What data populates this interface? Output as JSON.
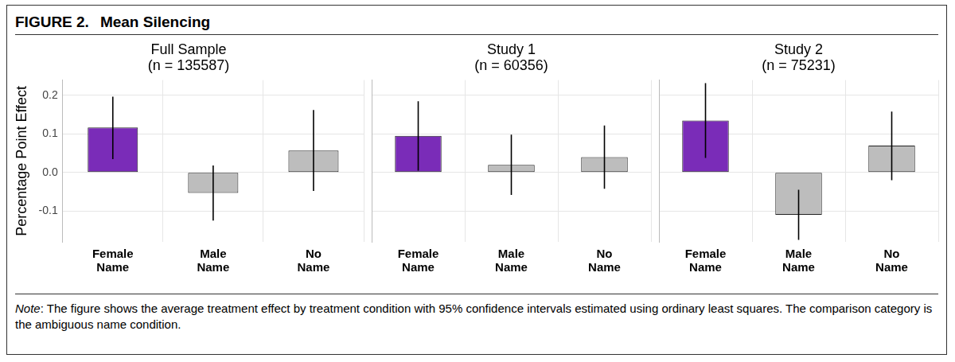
{
  "figure": {
    "label": "FIGURE 2.",
    "title": "Mean Silencing",
    "note_label": "Note",
    "note": ": The figure shows the average treatment effect by treatment condition with 95% confidence intervals estimated using ordinary least squares. The comparison category is the ambiguous name condition."
  },
  "chart_data": [
    {
      "type": "bar",
      "title": [
        "Full Sample",
        "(n = 135587)"
      ],
      "y_label": "Percentage Point Effect",
      "categories": [
        "Female Name",
        "Male Name",
        "No Name"
      ],
      "values": [
        0.117,
        -0.053,
        0.057
      ],
      "ci_low": [
        0.035,
        -0.125,
        -0.048
      ],
      "ci_high": [
        0.197,
        0.018,
        0.162
      ],
      "colors": [
        "#7a2cb8",
        "#bdbdbd",
        "#bdbdbd"
      ],
      "ylim": [
        -0.18,
        0.24
      ],
      "yticks": [
        -0.1,
        {
          "value": 0,
          "label": "0.0"
        },
        0.1,
        0.2
      ],
      "grid": true
    },
    {
      "type": "bar",
      "title": [
        "Study 1",
        "(n = 60356)"
      ],
      "categories": [
        "Female Name",
        "Male Name",
        "No Name"
      ],
      "values": [
        0.095,
        0.02,
        0.04
      ],
      "ci_low": [
        0.005,
        -0.058,
        -0.042
      ],
      "ci_high": [
        0.185,
        0.098,
        0.122
      ],
      "colors": [
        "#7a2cb8",
        "#bdbdbd",
        "#bdbdbd"
      ],
      "ylim": [
        -0.18,
        0.24
      ],
      "yticks": [
        -0.1,
        {
          "value": 0,
          "label": "0.0"
        },
        0.1,
        0.2
      ],
      "grid": true,
      "tick_labels": "x"
    },
    {
      "type": "bar",
      "title": [
        "Study 2",
        "(n = 75231)"
      ],
      "categories": [
        "Female Name",
        "Male Name",
        "No Name"
      ],
      "values": [
        0.135,
        -0.11,
        0.07
      ],
      "ci_low": [
        0.038,
        -0.175,
        -0.02
      ],
      "ci_high": [
        0.232,
        -0.045,
        0.158
      ],
      "colors": [
        "#7a2cb8",
        "#bdbdbd",
        "#bdbdbd"
      ],
      "ylim": [
        -0.18,
        0.24
      ],
      "yticks": [
        -0.1,
        {
          "value": 0,
          "label": "0.0"
        },
        0.1,
        0.2
      ],
      "grid": true,
      "tick_labels": "x"
    }
  ]
}
